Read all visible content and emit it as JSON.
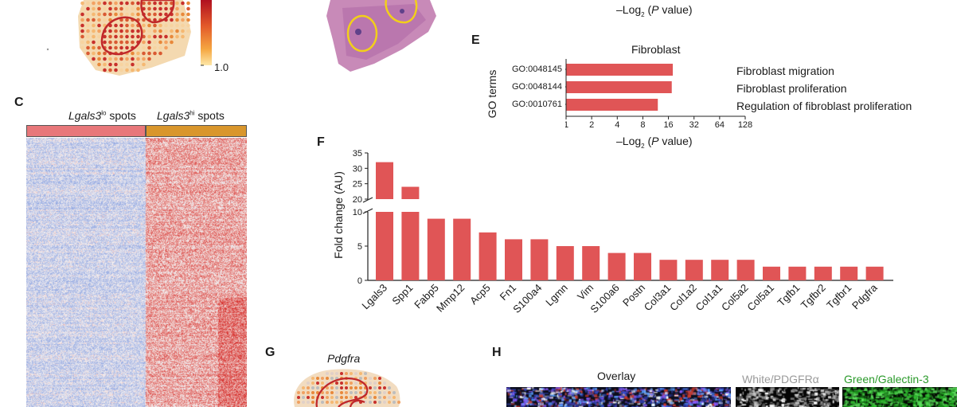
{
  "top_axis_label": {
    "pre": "–Log",
    "sub": "2",
    "mid": " (",
    "var": "P",
    "post": " value)"
  },
  "colorbar": {
    "min_label": "1.0"
  },
  "panel_c": {
    "letter": "C",
    "lo_gene": "Lgals3",
    "lo_sup": "lo",
    "lo_suffix": " spots",
    "hi_gene": "Lgals3",
    "hi_sup": "hi",
    "hi_suffix": " spots",
    "colors": {
      "lo_bar": "#e8777a",
      "hi_bar": "#d9962c",
      "blue": "#8fa8d4",
      "red": "#d63a3a"
    }
  },
  "panel_e": {
    "letter": "E",
    "title": "Fibroblast",
    "ylabel": "GO terms",
    "xlabel": {
      "pre": "–Log",
      "sub": "2",
      "mid": " (",
      "var": "P",
      "post": " value)"
    },
    "terms": [
      {
        "id": "GO:0048145",
        "description": "Fibroblast migration",
        "value": 18
      },
      {
        "id": "GO:0048144",
        "description": "Fibroblast proliferation",
        "value": 17.5
      },
      {
        "id": "GO:0010761",
        "description": "Regulation of fibroblast proliferation",
        "value": 12
      }
    ],
    "ticks": [
      "1",
      "2",
      "4",
      "8",
      "16",
      "32",
      "64",
      "128"
    ]
  },
  "chart_data": {
    "type": "bar",
    "panel": "F",
    "ylabel": "Fold change (AU)",
    "y_lower_range": [
      0,
      10
    ],
    "y_upper_range": [
      20,
      35
    ],
    "y_lower_ticks": [
      "0",
      "5",
      "10"
    ],
    "y_upper_ticks": [
      "20",
      "25",
      "30",
      "35"
    ],
    "categories": [
      "Lgals3",
      "Spp1",
      "Fabp5",
      "Mmp12",
      "Acp5",
      "Fn1",
      "S100a4",
      "Lgmn",
      "Vim",
      "S100a6",
      "Postn",
      "Col3a1",
      "Col1a2",
      "Col1a1",
      "Col5a2",
      "Col5a1",
      "Tgfb1",
      "Tgfbr2",
      "Tgfbr1",
      "Pdgfra"
    ],
    "values": [
      32,
      24,
      9,
      9,
      7,
      6,
      6,
      5,
      5,
      4,
      4,
      3,
      3,
      3,
      3,
      2,
      2,
      2,
      2,
      2
    ],
    "color": "#e05556"
  },
  "panel_g": {
    "letter": "G",
    "gene": "Pdgfra"
  },
  "panel_h": {
    "letter": "H",
    "overlay_label": "Overlay",
    "white_label": "White/PDGFRα",
    "green_label": "Green/Galectin-3",
    "colors": {
      "white_label": "#9a9a9a",
      "green_label": "#2a9a2a"
    }
  }
}
